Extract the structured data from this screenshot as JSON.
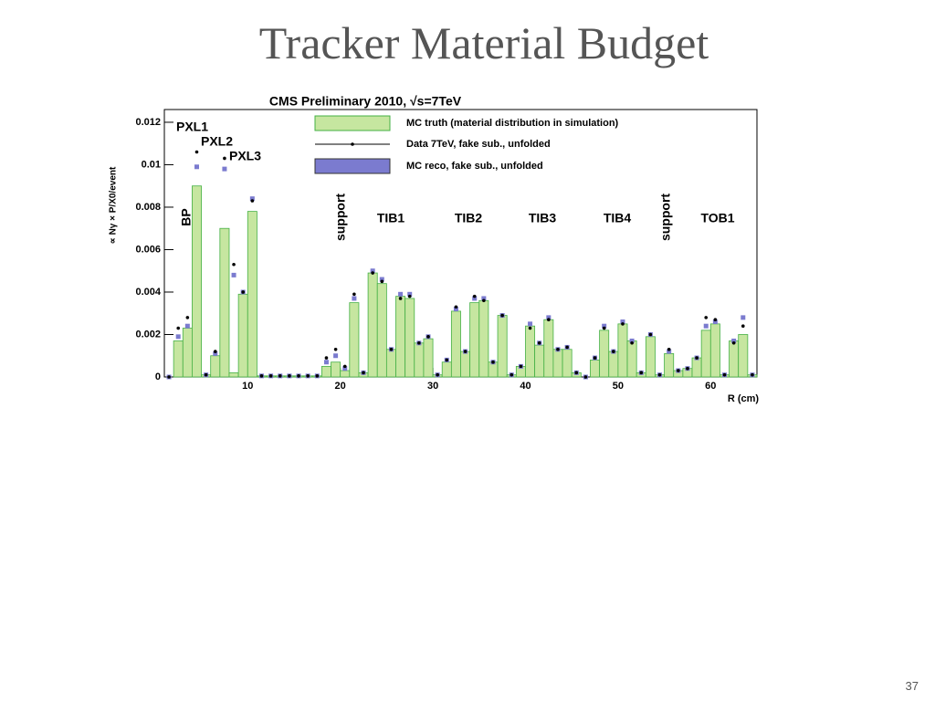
{
  "title": "Tracker Material Budget",
  "page_number": "37",
  "chart_data": {
    "type": "histogram",
    "title": "CMS Preliminary 2010, √s=7TeV",
    "x_label": "R (cm)",
    "y_label": "∝ Nγ × P/X0/event",
    "bins": [
      1,
      2,
      3,
      4,
      5,
      6,
      7,
      8,
      9,
      10,
      11,
      12,
      13,
      14,
      15,
      16,
      17,
      18,
      19,
      20,
      21,
      22,
      23,
      24,
      25,
      26,
      27,
      28,
      29,
      30,
      31,
      32,
      33,
      34,
      35,
      36,
      37,
      38,
      39,
      40,
      41,
      42,
      43,
      44,
      45,
      46,
      47,
      48,
      49,
      50,
      51,
      52,
      53,
      54,
      55,
      56,
      57,
      58,
      59,
      60,
      61,
      62,
      63,
      64,
      65
    ],
    "series": [
      {
        "name": "MC truth (material distribution in simulation)",
        "color": "#c6e6a0",
        "values": [
          0,
          0.0017,
          0.0023,
          0.009,
          0.0001,
          0.001,
          0.007,
          0.0002,
          0.0039,
          0.0078,
          5e-05,
          5e-05,
          5e-05,
          5e-05,
          5e-05,
          5e-05,
          5e-05,
          0.0005,
          0.0007,
          0.0003,
          0.0035,
          0.0002,
          0.0049,
          0.0044,
          0.0013,
          0.0038,
          0.0037,
          0.0016,
          0.0018,
          0.0001,
          0.0007,
          0.0031,
          0.0012,
          0.0035,
          0.0036,
          0.0007,
          0.0029,
          0.0001,
          0.0005,
          0.0024,
          0.0015,
          0.0027,
          0.0013,
          0.0013,
          0.0002,
          0,
          0.0008,
          0.0022,
          0.0012,
          0.0025,
          0.0017,
          0.0002,
          0.0019,
          0.0001,
          0.0011,
          0.0003,
          0.0004,
          0.0009,
          0.0022,
          0.0025,
          0.0001,
          0.0017,
          0.002,
          0.0001
        ]
      },
      {
        "name": "Data 7TeV, fake sub., unfolded",
        "color": "#000000",
        "values": [
          0,
          0.0023,
          0.0028,
          0.0106,
          0.0001,
          0.0012,
          0.0103,
          0.0053,
          0.004,
          0.0083,
          5e-05,
          5e-05,
          5e-05,
          5e-05,
          5e-05,
          5e-05,
          5e-05,
          0.0009,
          0.0013,
          0.0005,
          0.0039,
          0.0002,
          0.0049,
          0.0045,
          0.0013,
          0.0037,
          0.0038,
          0.0016,
          0.0019,
          0.0001,
          0.0008,
          0.0033,
          0.0012,
          0.0038,
          0.0036,
          0.0007,
          0.0029,
          0.0001,
          0.0005,
          0.0023,
          0.0016,
          0.0027,
          0.0013,
          0.0014,
          0.0002,
          0,
          0.0009,
          0.0023,
          0.0012,
          0.0025,
          0.0016,
          0.0002,
          0.002,
          0.0001,
          0.0013,
          0.0003,
          0.0004,
          0.0009,
          0.0028,
          0.0027,
          0.0001,
          0.0016,
          0.0024,
          0.0001
        ]
      },
      {
        "name": "MC reco, fake sub., unfolded",
        "color": "#7b7bcf",
        "values": [
          0,
          0.0019,
          0.0024,
          0.0099,
          0.0001,
          0.0011,
          0.0098,
          0.0048,
          0.004,
          0.0084,
          5e-05,
          5e-05,
          5e-05,
          5e-05,
          5e-05,
          5e-05,
          5e-05,
          0.0007,
          0.001,
          0.0004,
          0.0037,
          0.0002,
          0.005,
          0.0046,
          0.0013,
          0.0039,
          0.0039,
          0.0016,
          0.0019,
          0.0001,
          0.0008,
          0.0032,
          0.0012,
          0.0037,
          0.0037,
          0.0007,
          0.0029,
          0.0001,
          0.0005,
          0.0025,
          0.0016,
          0.0028,
          0.0013,
          0.0014,
          0.0002,
          0,
          0.0009,
          0.0024,
          0.0012,
          0.0026,
          0.0017,
          0.0002,
          0.002,
          0.0001,
          0.0012,
          0.0003,
          0.0004,
          0.0009,
          0.0024,
          0.0026,
          0.0001,
          0.0017,
          0.0028,
          0.0001
        ]
      }
    ],
    "xlim": [
      1,
      65
    ],
    "ylim": [
      0,
      0.0126
    ],
    "xticks": [
      10,
      20,
      30,
      40,
      50,
      60
    ],
    "yticks": [
      0,
      0.002,
      0.004,
      0.006,
      0.008,
      0.01,
      0.012
    ],
    "annotations": [
      "PXL1",
      "PXL2",
      "PXL3",
      "BP",
      "support",
      "TIB1",
      "TIB2",
      "TIB3",
      "TIB4",
      "support",
      "TOB1"
    ]
  }
}
